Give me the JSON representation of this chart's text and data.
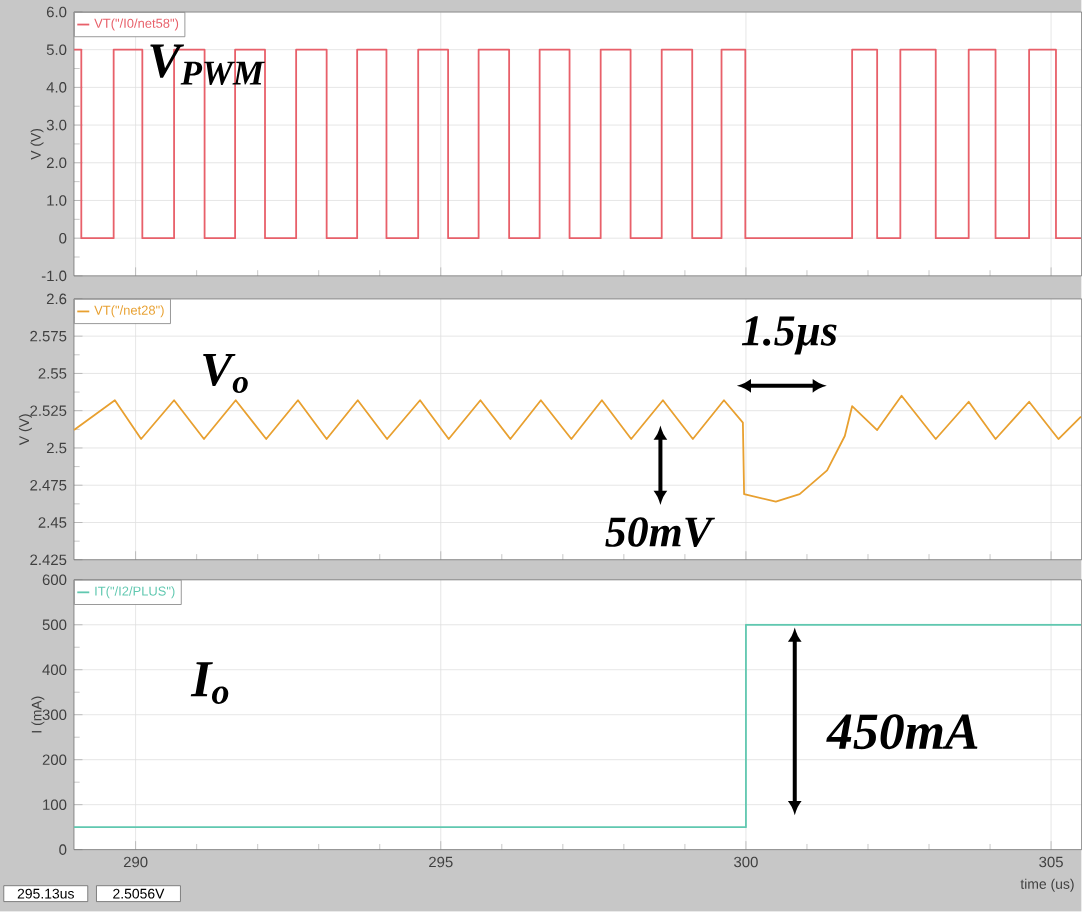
{
  "chart_data": [
    {
      "type": "line",
      "ylabel": "V (V)",
      "xlim": [
        288.99,
        305.5
      ],
      "ylim": [
        -1,
        6
      ],
      "xticks": [
        290,
        295,
        300,
        305
      ],
      "yticks": [
        {
          "value": -1,
          "label": "-1.0"
        },
        0,
        {
          "value": 1,
          "label": "1.0"
        },
        {
          "value": 2,
          "label": "2.0"
        },
        {
          "value": 3,
          "label": "3.0"
        },
        {
          "value": 4,
          "label": "4.0"
        },
        {
          "value": 5,
          "label": "5.0"
        },
        {
          "value": 6,
          "label": "6.0"
        }
      ],
      "tick_labels": "y",
      "grid": true,
      "legend": "top left",
      "series": [
        {
          "name": "VT(\"/I0/net58\")",
          "type": "step",
          "color": "#e8606a",
          "x": [
            288.99,
            289.11,
            289.64,
            290.11,
            290.63,
            291.13,
            291.63,
            292.12,
            292.63,
            293.13,
            293.63,
            294.11,
            294.63,
            295.12,
            295.62,
            296.12,
            296.62,
            297.11,
            297.62,
            298.11,
            298.62,
            299.12,
            299.6,
            299.99,
            301.74,
            302.15,
            302.53,
            303.11,
            303.65,
            304.09,
            304.64,
            305.08,
            305.49
          ],
          "values": [
            5,
            0,
            5,
            0,
            5,
            0,
            5,
            0,
            5,
            0,
            5,
            0,
            5,
            0,
            5,
            0,
            5,
            0,
            5,
            0,
            5,
            0,
            5,
            0,
            5,
            0,
            5,
            0,
            5,
            0,
            5,
            0,
            0
          ]
        }
      ],
      "annotations": [
        "V$_{PWM}$"
      ]
    },
    {
      "type": "line",
      "ylabel": "V (V)",
      "xlim": [
        288.99,
        305.5
      ],
      "ylim": [
        2.425,
        2.6
      ],
      "xticks": [
        290,
        295,
        300,
        305
      ],
      "yticks": [
        2.425,
        2.45,
        2.475,
        2.5,
        2.525,
        2.55,
        2.575,
        2.6
      ],
      "tick_labels": "y",
      "grid": true,
      "legend": "top left",
      "series": [
        {
          "name": "VT(\"/net28\")",
          "type": "line",
          "color": "#e8a030",
          "x": [
            288.99,
            289.66,
            290.09,
            290.63,
            291.12,
            291.64,
            292.14,
            292.66,
            293.13,
            293.64,
            294.12,
            294.66,
            295.13,
            295.65,
            296.14,
            296.64,
            297.14,
            297.64,
            298.12,
            298.64,
            299.13,
            299.64,
            299.95,
            299.97,
            300.49,
            300.88,
            301.33,
            301.62,
            301.74,
            302.15,
            302.55,
            303.11,
            303.65,
            304.09,
            304.64,
            305.12,
            305.49
          ],
          "values": [
            2.512,
            2.532,
            2.506,
            2.532,
            2.506,
            2.532,
            2.506,
            2.532,
            2.506,
            2.532,
            2.506,
            2.532,
            2.506,
            2.532,
            2.506,
            2.532,
            2.506,
            2.532,
            2.506,
            2.532,
            2.506,
            2.532,
            2.517,
            2.469,
            2.464,
            2.469,
            2.485,
            2.508,
            2.528,
            2.512,
            2.535,
            2.506,
            2.531,
            2.506,
            2.531,
            2.506,
            2.521
          ]
        }
      ],
      "annotations": [
        "V$_{o}$",
        "1.5µs",
        "50mV"
      ]
    },
    {
      "type": "line",
      "ylabel": "I (mA)",
      "xlabel": "time (us)",
      "xlim": [
        288.99,
        305.5
      ],
      "ylim": [
        0,
        600
      ],
      "xticks": [
        290,
        295,
        300,
        305
      ],
      "yticks": [
        0,
        100,
        200,
        300,
        400,
        500,
        600
      ],
      "grid": true,
      "legend": "top left",
      "series": [
        {
          "name": "IT(\"/I2/PLUS\")",
          "type": "step",
          "color": "#60c8b0",
          "x": [
            288.99,
            300,
            305.49
          ],
          "values": [
            50,
            500,
            500
          ]
        }
      ],
      "annotations": [
        "I$_{o}$",
        {
          "text": "450mA",
          "x": 300.8,
          "y": 500
        },
        "295.13us",
        "2.5056V"
      ]
    }
  ]
}
